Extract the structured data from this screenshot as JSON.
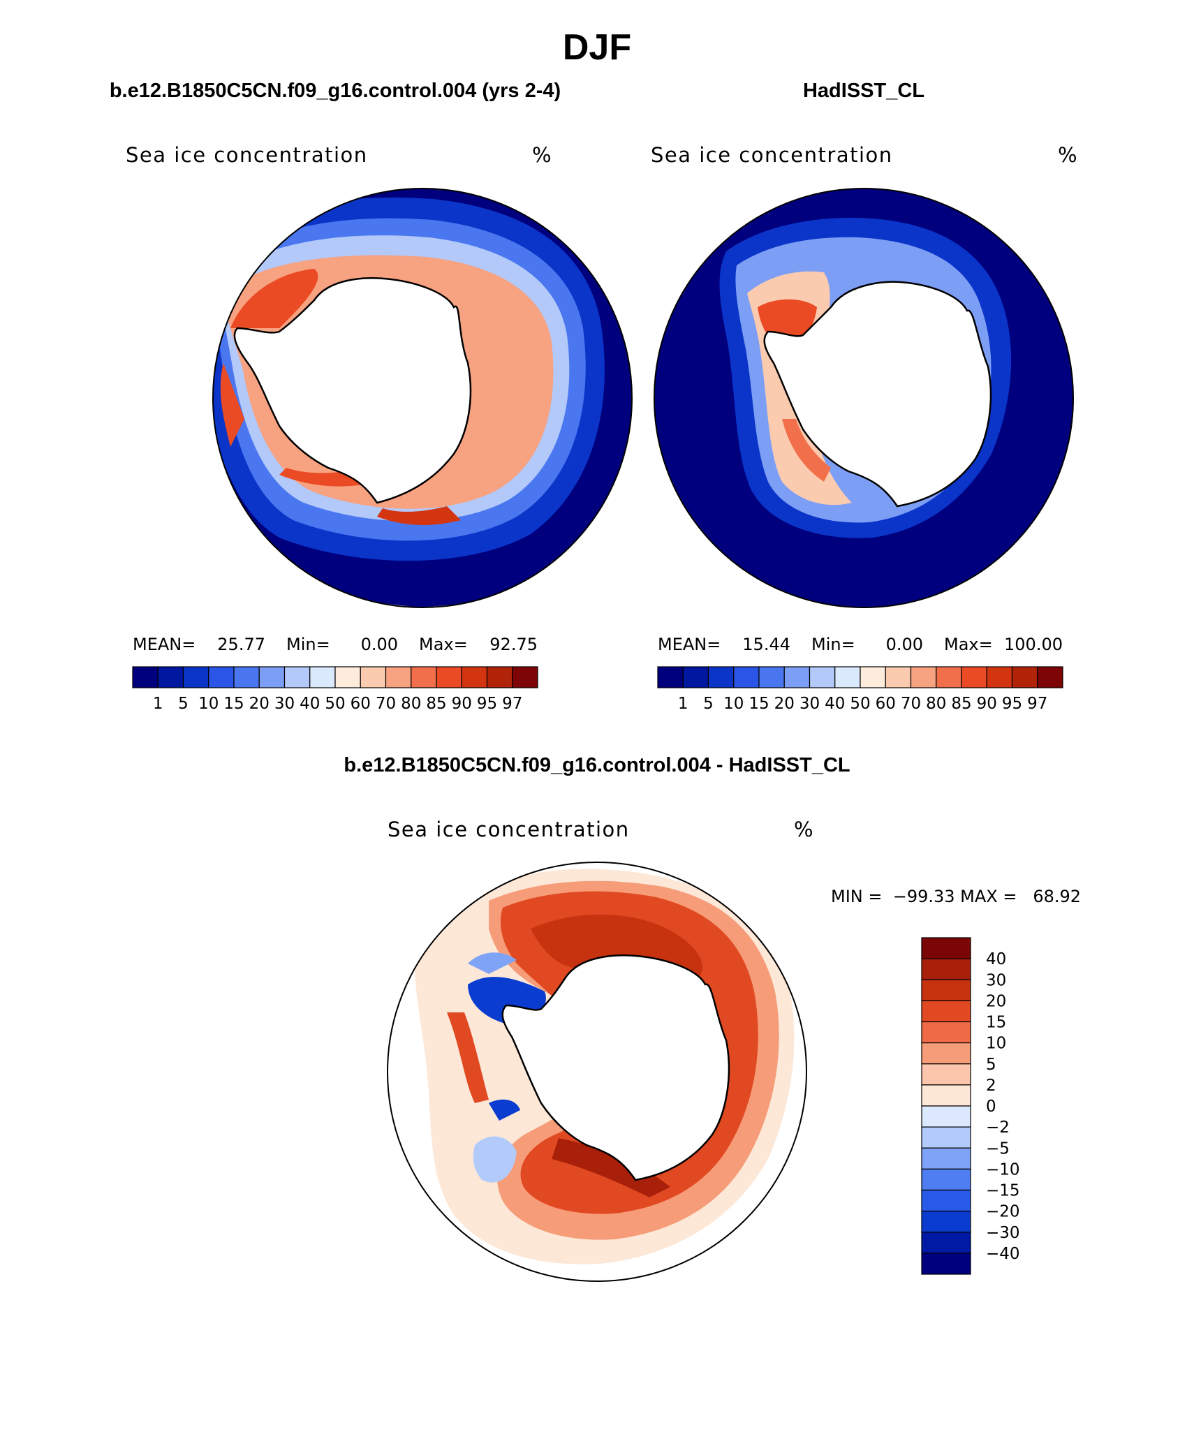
{
  "page_title": "DJF",
  "colors": {
    "seq": [
      "#00007f",
      "#00179f",
      "#0b35c8",
      "#2a55e6",
      "#4a77ef",
      "#7d9ef5",
      "#b2c9fa",
      "#dbe9fd",
      "#fdebdc",
      "#fbcbb0",
      "#f7a281",
      "#f1704b",
      "#ea4b24",
      "#d33511",
      "#b2240a",
      "#7d0505"
    ],
    "diff": [
      "#00007f",
      "#001aa6",
      "#0b3cd0",
      "#2a5ae8",
      "#4e7ef1",
      "#7fa3f6",
      "#b3cbfb",
      "#dbe8fd",
      "#fde8d8",
      "#fbc6ab",
      "#f69c78",
      "#ee6b45",
      "#e14922",
      "#c8330f",
      "#a8200a",
      "#7b0606"
    ]
  },
  "chart_data": [
    {
      "type": "heatmap",
      "projection": "south-polar-stereographic",
      "panel_title": "b.e12.B1850C5CN.f09_g16.control.004 (yrs 2-4)",
      "variable": "Sea ice concentration",
      "units": "%",
      "stats": {
        "mean_label": "MEAN=",
        "mean": "25.77",
        "min_label": "Min=",
        "min": "0.00",
        "max_label": "Max=",
        "max": "92.75"
      },
      "colorbar_levels": [
        "1",
        "5",
        "10",
        "15",
        "20",
        "30",
        "40",
        "50",
        "60",
        "70",
        "80",
        "85",
        "90",
        "95",
        "97"
      ]
    },
    {
      "type": "heatmap",
      "projection": "south-polar-stereographic",
      "panel_title": "HadISST_CL",
      "variable": "Sea ice concentration",
      "units": "%",
      "stats": {
        "mean_label": "MEAN=",
        "mean": "15.44",
        "min_label": "Min=",
        "min": "0.00",
        "max_label": "Max=",
        "max": "100.00"
      },
      "colorbar_levels": [
        "1",
        "5",
        "10",
        "15",
        "20",
        "30",
        "40",
        "50",
        "60",
        "70",
        "80",
        "85",
        "90",
        "95",
        "97"
      ]
    },
    {
      "type": "heatmap",
      "projection": "south-polar-stereographic",
      "panel_title": "b.e12.B1850C5CN.f09_g16.control.004 - HadISST_CL",
      "variable": "Sea ice concentration",
      "units": "%",
      "minmax_label": "MIN =  −99.33 MAX =   68.92",
      "colorbar_levels": [
        "40",
        "30",
        "20",
        "15",
        "10",
        "5",
        "2",
        "0",
        "−2",
        "−5",
        "−10",
        "−15",
        "−20",
        "−30",
        "−40"
      ]
    }
  ]
}
